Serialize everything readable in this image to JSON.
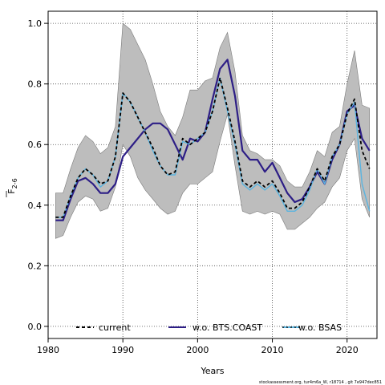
{
  "chart_data": {
    "type": "line",
    "xlabel": "Years",
    "ylabel_main": "F",
    "ylabel_sub": "2-6",
    "xlim": [
      1980,
      2024
    ],
    "ylim": [
      -0.04,
      1.04
    ],
    "x_ticks": [
      1980,
      1990,
      2000,
      2010,
      2020
    ],
    "y_ticks": [
      0.0,
      0.2,
      0.4,
      0.6,
      0.8,
      1.0
    ],
    "y_tick_labels": [
      "0.0",
      "0.2",
      "0.4",
      "0.6",
      "0.8",
      "1.0"
    ],
    "grid": true,
    "legend_position": "bottom",
    "x": [
      1981,
      1982,
      1983,
      1984,
      1985,
      1986,
      1987,
      1988,
      1989,
      1990,
      1991,
      1992,
      1993,
      1994,
      1995,
      1996,
      1997,
      1998,
      1999,
      2000,
      2001,
      2002,
      2003,
      2004,
      2005,
      2006,
      2007,
      2008,
      2009,
      2010,
      2011,
      2012,
      2013,
      2014,
      2015,
      2016,
      2017,
      2018,
      2019,
      2020,
      2021,
      2022,
      2023
    ],
    "band": {
      "upper": [
        0.44,
        0.44,
        0.52,
        0.59,
        0.63,
        0.61,
        0.57,
        0.59,
        0.66,
        1.0,
        0.98,
        0.93,
        0.88,
        0.8,
        0.71,
        0.66,
        0.63,
        0.69,
        0.78,
        0.78,
        0.81,
        0.82,
        0.92,
        0.97,
        0.84,
        0.63,
        0.58,
        0.57,
        0.55,
        0.55,
        0.53,
        0.48,
        0.46,
        0.46,
        0.51,
        0.58,
        0.56,
        0.64,
        0.66,
        0.8,
        0.91,
        0.73,
        0.72
      ],
      "lower": [
        0.29,
        0.3,
        0.36,
        0.41,
        0.43,
        0.42,
        0.38,
        0.39,
        0.46,
        0.6,
        0.56,
        0.49,
        0.45,
        0.42,
        0.39,
        0.37,
        0.38,
        0.44,
        0.47,
        0.47,
        0.49,
        0.51,
        0.61,
        0.7,
        0.53,
        0.38,
        0.37,
        0.38,
        0.37,
        0.38,
        0.37,
        0.32,
        0.32,
        0.34,
        0.36,
        0.39,
        0.41,
        0.46,
        0.49,
        0.58,
        0.62,
        0.42,
        0.36
      ]
    },
    "series": [
      {
        "name": "current",
        "color": "#000000",
        "dash": "4,3",
        "values": [
          0.36,
          0.36,
          0.43,
          0.49,
          0.52,
          0.5,
          0.47,
          0.48,
          0.56,
          0.77,
          0.74,
          0.69,
          0.64,
          0.59,
          0.53,
          0.5,
          0.51,
          0.62,
          0.6,
          0.62,
          0.64,
          0.71,
          0.82,
          0.72,
          0.61,
          0.48,
          0.46,
          0.48,
          0.46,
          0.48,
          0.44,
          0.39,
          0.39,
          0.41,
          0.46,
          0.52,
          0.48,
          0.56,
          0.6,
          0.7,
          0.75,
          0.58,
          0.52
        ]
      },
      {
        "name": "w.o. BTS.COAST",
        "color": "#2d1e86",
        "dash": "",
        "values": [
          0.35,
          0.35,
          0.42,
          0.48,
          0.49,
          0.47,
          0.44,
          0.44,
          0.47,
          0.56,
          0.59,
          0.62,
          0.65,
          0.67,
          0.67,
          0.65,
          0.6,
          0.55,
          0.62,
          0.61,
          0.64,
          0.75,
          0.85,
          0.88,
          0.76,
          0.58,
          0.55,
          0.55,
          0.51,
          0.54,
          0.49,
          0.44,
          0.41,
          0.42,
          0.46,
          0.51,
          0.47,
          0.55,
          0.6,
          0.71,
          0.73,
          0.62,
          0.58
        ]
      },
      {
        "name": "w.o. BSAS",
        "color": "#5ab4e0",
        "dash": "",
        "values": [
          0.36,
          0.36,
          0.43,
          0.49,
          0.52,
          0.5,
          0.46,
          0.48,
          0.56,
          0.77,
          0.74,
          0.69,
          0.64,
          0.58,
          0.53,
          0.5,
          0.5,
          0.61,
          0.6,
          0.62,
          0.64,
          0.71,
          0.82,
          0.71,
          0.6,
          0.47,
          0.45,
          0.47,
          0.45,
          0.47,
          0.43,
          0.38,
          0.38,
          0.4,
          0.45,
          0.52,
          0.47,
          0.56,
          0.6,
          0.7,
          0.74,
          0.47,
          0.38
        ]
      }
    ],
    "legend": [
      "current",
      "w.o. BTS.COAST",
      "w.o. BSAS"
    ]
  },
  "footer": "stockassessment.org, tur4m6a_W, r18714 , git 7e947dec851"
}
